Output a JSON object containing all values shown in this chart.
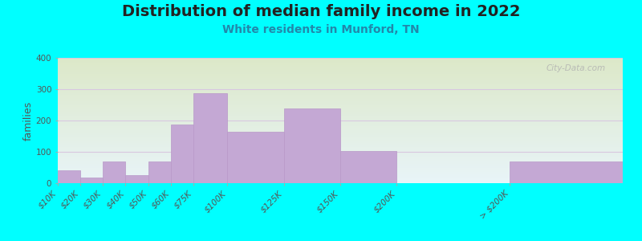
{
  "title": "Distribution of median family income in 2022",
  "subtitle": "White residents in Munford, TN",
  "ylabel": "families",
  "background_outer": "#00FFFF",
  "background_inner_gradient_top": "#dce8c8",
  "background_inner_gradient_bottom": "#f0f8f0",
  "background_inner_gradient_right": "#e8f4f8",
  "bar_color": "#C4A8D4",
  "bar_edge_color": "#b898c8",
  "title_fontsize": 14,
  "subtitle_fontsize": 10,
  "ylabel_fontsize": 9,
  "tick_fontsize": 7.5,
  "bin_edges": [
    0,
    10,
    20,
    30,
    40,
    50,
    60,
    75,
    100,
    125,
    150,
    200,
    250
  ],
  "bin_labels": [
    "$10K",
    "$20K",
    "$30K",
    "$40K",
    "$50K",
    "$60K",
    "$75K",
    "$100K",
    "$125K",
    "$150K",
    "$200K",
    "> $200K"
  ],
  "values": [
    40,
    18,
    68,
    25,
    68,
    188,
    288,
    163,
    238,
    103,
    0,
    68
  ],
  "ylim": [
    0,
    400
  ],
  "yticks": [
    0,
    100,
    200,
    300,
    400
  ],
  "grid_color": "#d8c8e0",
  "watermark": "City-Data.com"
}
